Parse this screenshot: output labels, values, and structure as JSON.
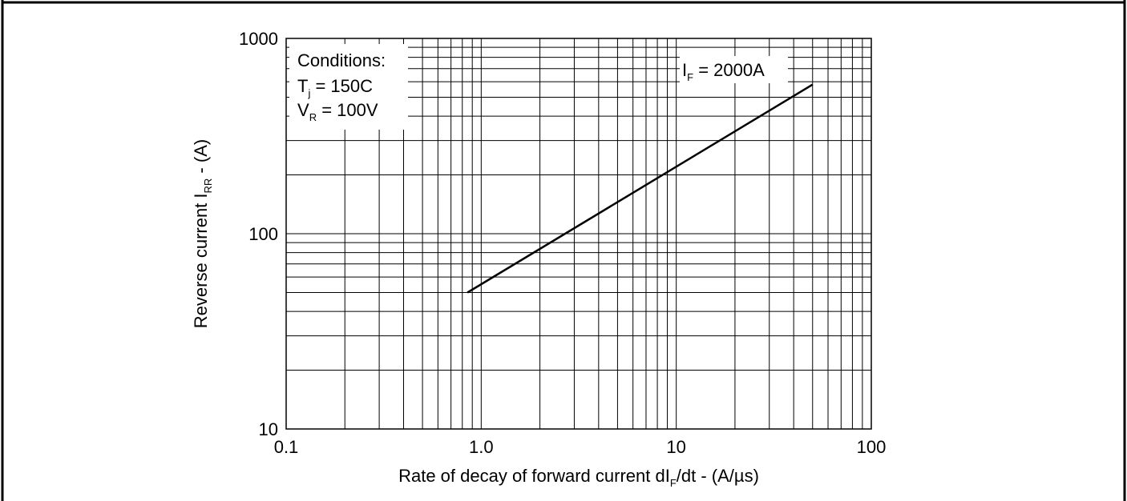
{
  "chart_data": {
    "type": "line",
    "x_scale": "log",
    "y_scale": "log",
    "xlim": [
      0.1,
      100
    ],
    "ylim": [
      10,
      1000
    ],
    "grid": true,
    "x_ticks": [
      "0.1",
      "1.0",
      "10",
      "100"
    ],
    "y_ticks": [
      "10",
      "100",
      "1000"
    ],
    "xlabel": {
      "before": "Rate of decay of forward current dI",
      "sub": "F",
      "after": "/dt - (A/µs)"
    },
    "ylabel": {
      "before": "Reverse current I",
      "sub": "RR",
      "after": " - (A)"
    },
    "conditions": {
      "title": "Conditions:",
      "tj": {
        "sym": "T",
        "sub": "j",
        "value": " = 150C"
      },
      "vr": {
        "sym": "V",
        "sub": "R",
        "value": " = 100V"
      }
    },
    "series": [
      {
        "label": {
          "sym": "I",
          "sub": "F",
          "value": " = 2000A"
        },
        "x": [
          0.85,
          50
        ],
        "y": [
          50,
          580
        ]
      }
    ]
  }
}
